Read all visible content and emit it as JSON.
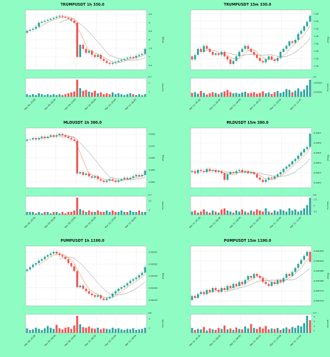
{
  "page": {
    "background": "#8ffcc4"
  },
  "colors": {
    "up": "#26a69a",
    "down": "#ef5350",
    "ma_fast": "#e07b2a",
    "ma_slow": "#888888",
    "grid": "#e6e6e6"
  },
  "chart_data": [
    {
      "type": "candlestick",
      "title": "TRUMPUSDT 1h 330.0",
      "ylabel": "Price",
      "volume_label": "Volume",
      "volume_multiplier": "1e7",
      "yticks": [
        "9.5",
        "9",
        "8.5",
        "8",
        "7.5",
        "7",
        "6.5"
      ],
      "xticks": [
        "Mar 08, 20:00",
        "Mar 09, 08:00",
        "Mar 09, 20:00",
        "Mar 10, 08:00",
        "Mar 10, 20:00",
        "Mar 11, 08:00"
      ],
      "vol_ticks": [
        "2",
        "1"
      ],
      "open": [
        8.4,
        8.5,
        8.55,
        8.6,
        8.7,
        8.9,
        8.95,
        9.0,
        9.05,
        9.1,
        9.15,
        9.2,
        9.25,
        9.2,
        9.15,
        9.1,
        9.0,
        8.9,
        7.2,
        7.8,
        7.6,
        7.4,
        7.5,
        7.3,
        7.2,
        7.3,
        7.1,
        7.0,
        6.9,
        6.85,
        6.9,
        6.95,
        7.0,
        7.05,
        7.1,
        7.15,
        7.2,
        7.15,
        7.25,
        7.3,
        7.35
      ],
      "close": [
        8.5,
        8.55,
        8.6,
        8.7,
        8.9,
        8.95,
        9.0,
        9.05,
        9.1,
        9.15,
        9.2,
        9.25,
        9.2,
        9.15,
        9.1,
        9.0,
        8.9,
        7.2,
        7.8,
        7.6,
        7.4,
        7.5,
        7.3,
        7.2,
        7.3,
        7.1,
        7.0,
        6.9,
        6.85,
        6.9,
        6.95,
        7.0,
        7.05,
        7.1,
        7.15,
        7.2,
        7.15,
        7.25,
        7.3,
        7.35,
        7.6
      ],
      "volume": [
        0.3,
        0.2,
        0.3,
        0.2,
        0.4,
        0.3,
        0.2,
        0.3,
        0.2,
        0.3,
        0.2,
        0.3,
        0.2,
        0.3,
        0.4,
        0.5,
        0.6,
        2.0,
        1.0,
        0.7,
        0.8,
        0.6,
        0.5,
        0.7,
        0.4,
        0.5,
        0.3,
        0.4,
        0.3,
        0.5,
        0.3,
        0.4,
        0.3,
        0.2,
        0.3,
        0.4,
        0.3,
        0.2,
        0.3,
        0.2,
        0.3
      ]
    },
    {
      "type": "candlestick",
      "title": "TRUMPUSDT 15m 330.0",
      "ylabel": "Price",
      "volume_label": "Volume",
      "volume_multiplier": "1e7",
      "yticks": [
        "7.60",
        "7.55",
        "7.50",
        "7.45",
        "7.40",
        "7.35",
        "7.30",
        "7.25"
      ],
      "xticks": [
        "Mar 11, 05:30",
        "Mar 11, 06:45",
        "Mar 11, 08:00",
        "Mar 11, 09:15",
        "Mar 11, 10:30",
        "Mar 11, 11:45"
      ],
      "vol_ticks": [
        "0.50000",
        "0.25000"
      ],
      "open": [
        7.35,
        7.33,
        7.36,
        7.4,
        7.38,
        7.42,
        7.4,
        7.38,
        7.36,
        7.37,
        7.36,
        7.38,
        7.35,
        7.33,
        7.3,
        7.32,
        7.35,
        7.38,
        7.4,
        7.42,
        7.4,
        7.38,
        7.36,
        7.34,
        7.32,
        7.31,
        7.33,
        7.35,
        7.33,
        7.32,
        7.34,
        7.38,
        7.4,
        7.42,
        7.45,
        7.44,
        7.46,
        7.5,
        7.52,
        7.55,
        7.58
      ],
      "close": [
        7.33,
        7.36,
        7.4,
        7.38,
        7.42,
        7.4,
        7.38,
        7.36,
        7.37,
        7.36,
        7.38,
        7.35,
        7.33,
        7.3,
        7.32,
        7.35,
        7.38,
        7.4,
        7.42,
        7.4,
        7.38,
        7.36,
        7.34,
        7.32,
        7.31,
        7.33,
        7.35,
        7.33,
        7.32,
        7.34,
        7.38,
        7.4,
        7.42,
        7.45,
        7.44,
        7.46,
        7.5,
        7.52,
        7.55,
        7.58,
        7.62
      ],
      "volume": [
        0.1,
        0.12,
        0.08,
        0.15,
        0.1,
        0.06,
        0.09,
        0.12,
        0.1,
        0.07,
        0.11,
        0.14,
        0.18,
        0.12,
        0.09,
        0.1,
        0.08,
        0.11,
        0.13,
        0.09,
        0.1,
        0.12,
        0.08,
        0.1,
        0.14,
        0.09,
        0.11,
        0.07,
        0.12,
        0.15,
        0.1,
        0.13,
        0.2,
        0.18,
        0.12,
        0.16,
        0.22,
        0.14,
        0.19,
        0.3,
        0.45
      ]
    },
    {
      "type": "candlestick",
      "title": "MLDUSDT 1h 380.0",
      "ylabel": "Price",
      "volume_label": "Volume",
      "volume_multiplier": "1e7",
      "yticks": [
        "0.008",
        "0.007",
        "0.006",
        "0.005",
        "0.004"
      ],
      "xticks": [
        "Mar 08, 20:00",
        "Mar 09, 08:00",
        "Mar 09, 20:00",
        "Mar 10, 08:00",
        "Mar 10, 20:00",
        "Mar 11, 08:00"
      ],
      "vol_ticks": [
        "10",
        "5"
      ],
      "open": [
        0.0078,
        0.0079,
        0.0079,
        0.008,
        0.0079,
        0.008,
        0.0081,
        0.008,
        0.0081,
        0.0082,
        0.0081,
        0.0082,
        0.0083,
        0.0082,
        0.0081,
        0.008,
        0.0079,
        0.0078,
        0.0055,
        0.0056,
        0.0054,
        0.0055,
        0.0053,
        0.0052,
        0.0053,
        0.0051,
        0.005,
        0.0049,
        0.005,
        0.0051,
        0.005,
        0.0049,
        0.005,
        0.0051,
        0.0052,
        0.0051,
        0.0052,
        0.0053,
        0.0054,
        0.0053,
        0.0054
      ],
      "close": [
        0.0079,
        0.0079,
        0.008,
        0.0079,
        0.008,
        0.0081,
        0.008,
        0.0081,
        0.0082,
        0.0081,
        0.0082,
        0.0083,
        0.0082,
        0.0081,
        0.008,
        0.0079,
        0.0078,
        0.0055,
        0.0056,
        0.0054,
        0.0055,
        0.0053,
        0.0052,
        0.0053,
        0.0051,
        0.005,
        0.0049,
        0.005,
        0.0051,
        0.005,
        0.0049,
        0.005,
        0.0051,
        0.0052,
        0.0051,
        0.0052,
        0.0053,
        0.0054,
        0.0053,
        0.0054,
        0.0057
      ],
      "volume": [
        2,
        2,
        2,
        1,
        2,
        1,
        2,
        2,
        1,
        2,
        2,
        1,
        2,
        1,
        2,
        2,
        3,
        12,
        4,
        3,
        2,
        3,
        2,
        2,
        3,
        2,
        2,
        3,
        2,
        3,
        2,
        2,
        3,
        2,
        2,
        3,
        2,
        2,
        3,
        2,
        2
      ]
    },
    {
      "type": "candlestick",
      "title": "MLDUSDT 15m 380.0",
      "ylabel": "Price",
      "volume_label": "Volume",
      "volume_multiplier": "1e6",
      "yticks": [
        "0.0057",
        "0.0056",
        "0.0055",
        "0.0054",
        "0.0053",
        "0.0052"
      ],
      "xticks": [
        "Mar 11, 05:30",
        "Mar 11, 06:45",
        "Mar 11, 08:00",
        "Mar 11, 09:15",
        "Mar 11, 10:30",
        "Mar 11, 11:45"
      ],
      "vol_ticks": [
        "1.5",
        "1",
        "0.5"
      ],
      "open": [
        0.00535,
        0.00536,
        0.00534,
        0.00537,
        0.00536,
        0.00535,
        0.00538,
        0.00536,
        0.00537,
        0.00535,
        0.00536,
        0.00534,
        0.00528,
        0.00533,
        0.00535,
        0.00534,
        0.00536,
        0.00537,
        0.00535,
        0.00536,
        0.00534,
        0.00535,
        0.00533,
        0.0053,
        0.00528,
        0.00526,
        0.00528,
        0.0053,
        0.00529,
        0.00531,
        0.00533,
        0.00535,
        0.00538,
        0.0054,
        0.00542,
        0.00545,
        0.00547,
        0.0055,
        0.00553,
        0.00556,
        0.00558
      ],
      "close": [
        0.00536,
        0.00534,
        0.00537,
        0.00536,
        0.00535,
        0.00538,
        0.00536,
        0.00537,
        0.00535,
        0.00536,
        0.00534,
        0.00528,
        0.00533,
        0.00535,
        0.00534,
        0.00536,
        0.00537,
        0.00535,
        0.00536,
        0.00534,
        0.00535,
        0.00533,
        0.0053,
        0.00528,
        0.00526,
        0.00528,
        0.0053,
        0.00529,
        0.00531,
        0.00533,
        0.00535,
        0.00538,
        0.0054,
        0.00542,
        0.00545,
        0.00547,
        0.0055,
        0.00553,
        0.00556,
        0.00558,
        0.0057
      ],
      "volume": [
        0.3,
        0.4,
        0.2,
        0.3,
        0.5,
        0.3,
        0.2,
        0.4,
        0.3,
        0.2,
        0.5,
        0.6,
        0.4,
        0.3,
        0.2,
        0.4,
        0.3,
        0.5,
        0.3,
        0.2,
        0.4,
        0.3,
        0.5,
        0.4,
        0.3,
        0.6,
        0.3,
        0.2,
        0.4,
        0.3,
        0.5,
        0.4,
        0.3,
        0.6,
        0.4,
        0.5,
        0.3,
        0.4,
        0.6,
        0.9,
        1.6
      ]
    },
    {
      "type": "candlestick",
      "title": "PUMPUSDT 1h 1190.0",
      "ylabel": "Price",
      "volume_label": "Volume",
      "volume_multiplier": "1e8",
      "yticks": [
        "0.00022",
        "0.00020",
        "0.00018",
        "0.00016",
        "0.00014"
      ],
      "xticks": [
        "Mar 08, 20:00",
        "Mar 09, 08:00",
        "Mar 09, 20:00",
        "Mar 10, 08:00",
        "Mar 10, 20:00",
        "Mar 11, 08:00"
      ],
      "vol_ticks": [
        "4",
        "2"
      ],
      "open": [
        0.00019,
        0.000192,
        0.000195,
        0.000198,
        0.0002,
        0.000203,
        0.000205,
        0.000208,
        0.00021,
        0.000212,
        0.000214,
        0.000212,
        0.00021,
        0.000208,
        0.000205,
        0.0002,
        0.000196,
        0.00019,
        0.00017,
        0.000172,
        0.000168,
        0.000165,
        0.000162,
        0.00016,
        0.000158,
        0.00016,
        0.000156,
        0.000154,
        0.000156,
        0.000158,
        0.000162,
        0.000165,
        0.000168,
        0.00017,
        0.000172,
        0.000175,
        0.000178,
        0.00018,
        0.000182,
        0.000185,
        0.000188
      ],
      "close": [
        0.000192,
        0.000195,
        0.000198,
        0.0002,
        0.000203,
        0.000205,
        0.000208,
        0.00021,
        0.000212,
        0.000214,
        0.000212,
        0.00021,
        0.000208,
        0.000205,
        0.0002,
        0.000196,
        0.00019,
        0.00017,
        0.000172,
        0.000168,
        0.000165,
        0.000162,
        0.00016,
        0.000158,
        0.00016,
        0.000156,
        0.000154,
        0.000156,
        0.000158,
        0.000162,
        0.000165,
        0.000168,
        0.00017,
        0.000172,
        0.000175,
        0.000178,
        0.00018,
        0.000182,
        0.000185,
        0.000188,
        0.000195
      ],
      "volume": [
        0.8,
        0.5,
        0.6,
        0.9,
        0.7,
        0.5,
        0.8,
        1.2,
        0.9,
        0.7,
        1.4,
        0.8,
        0.6,
        0.9,
        1.0,
        0.7,
        1.3,
        3.0,
        1.5,
        1.0,
        0.9,
        1.1,
        0.8,
        0.7,
        0.9,
        0.6,
        0.8,
        0.7,
        0.6,
        0.9,
        0.7,
        0.8,
        0.6,
        0.5,
        0.7,
        0.6,
        0.8,
        0.5,
        0.6,
        0.7,
        0.9
      ]
    },
    {
      "type": "candlestick",
      "title": "PUMPUSDT 15m 1190.0",
      "ylabel": "Price",
      "volume_label": "Volume",
      "volume_multiplier": "1e7",
      "yticks": [
        "0.000195",
        "0.000190",
        "0.000185",
        "0.000180",
        "0.000175",
        "0.000170"
      ],
      "xticks": [
        "Mar 11, 05:30",
        "Mar 11, 06:45",
        "Mar 11, 08:00",
        "Mar 11, 09:15",
        "Mar 11, 10:30",
        "Mar 11, 11:45"
      ],
      "vol_ticks": [
        "4",
        "3",
        "2",
        "1"
      ],
      "open": [
        0.000172,
        0.000174,
        0.000173,
        0.000175,
        0.000176,
        0.000175,
        0.000177,
        0.000176,
        0.000178,
        0.000177,
        0.000176,
        0.000178,
        0.000177,
        0.000179,
        0.000178,
        0.00018,
        0.000179,
        0.000181,
        0.00018,
        0.000182,
        0.000184,
        0.000183,
        0.000185,
        0.000184,
        0.000183,
        0.000181,
        0.00018,
        0.000179,
        0.000181,
        0.00018,
        0.000182,
        0.000181,
        0.000183,
        0.000185,
        0.000184,
        0.000186,
        0.000188,
        0.00019,
        0.000192,
        0.000194,
        0.000196
      ],
      "close": [
        0.000174,
        0.000173,
        0.000175,
        0.000176,
        0.000175,
        0.000177,
        0.000176,
        0.000178,
        0.000177,
        0.000176,
        0.000178,
        0.000177,
        0.000179,
        0.000178,
        0.00018,
        0.000179,
        0.000181,
        0.00018,
        0.000182,
        0.000184,
        0.000183,
        0.000185,
        0.000184,
        0.000183,
        0.000181,
        0.00018,
        0.000179,
        0.000181,
        0.00018,
        0.000182,
        0.000181,
        0.000183,
        0.000185,
        0.000184,
        0.000186,
        0.000188,
        0.00019,
        0.000192,
        0.000194,
        0.000196,
        0.000191
      ],
      "volume": [
        1.0,
        0.6,
        0.8,
        0.7,
        1.2,
        0.5,
        0.9,
        0.7,
        0.6,
        1.0,
        0.8,
        1.5,
        0.7,
        0.9,
        0.6,
        1.1,
        0.8,
        0.7,
        1.3,
        0.9,
        1.8,
        1.0,
        0.8,
        1.2,
        0.9,
        1.4,
        0.7,
        0.9,
        0.8,
        1.0,
        0.6,
        0.9,
        1.1,
        0.8,
        1.2,
        1.0,
        1.5,
        1.3,
        2.0,
        3.5,
        2.6
      ]
    }
  ]
}
